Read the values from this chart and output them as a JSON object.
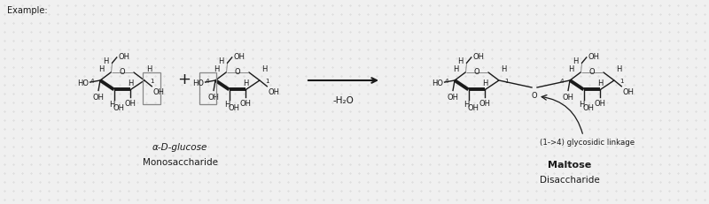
{
  "bg_color": "#f0f0f0",
  "dot_color": "#d0d0d0",
  "line_color": "#1a1a1a",
  "gray_color": "#888888",
  "text_color": "#1a1a1a",
  "example_label": "Example:",
  "label_alpha_glucose": "α-D-glucose",
  "label_monosaccharide": "Monosaccharide",
  "label_maltose": "Maltose",
  "label_disaccharide": "Disaccharide",
  "label_linkage": "(1->4) glycosidic linkage",
  "label_water": "-H₂O",
  "figwidth": 8.0,
  "figheight": 2.32,
  "dpi": 100
}
